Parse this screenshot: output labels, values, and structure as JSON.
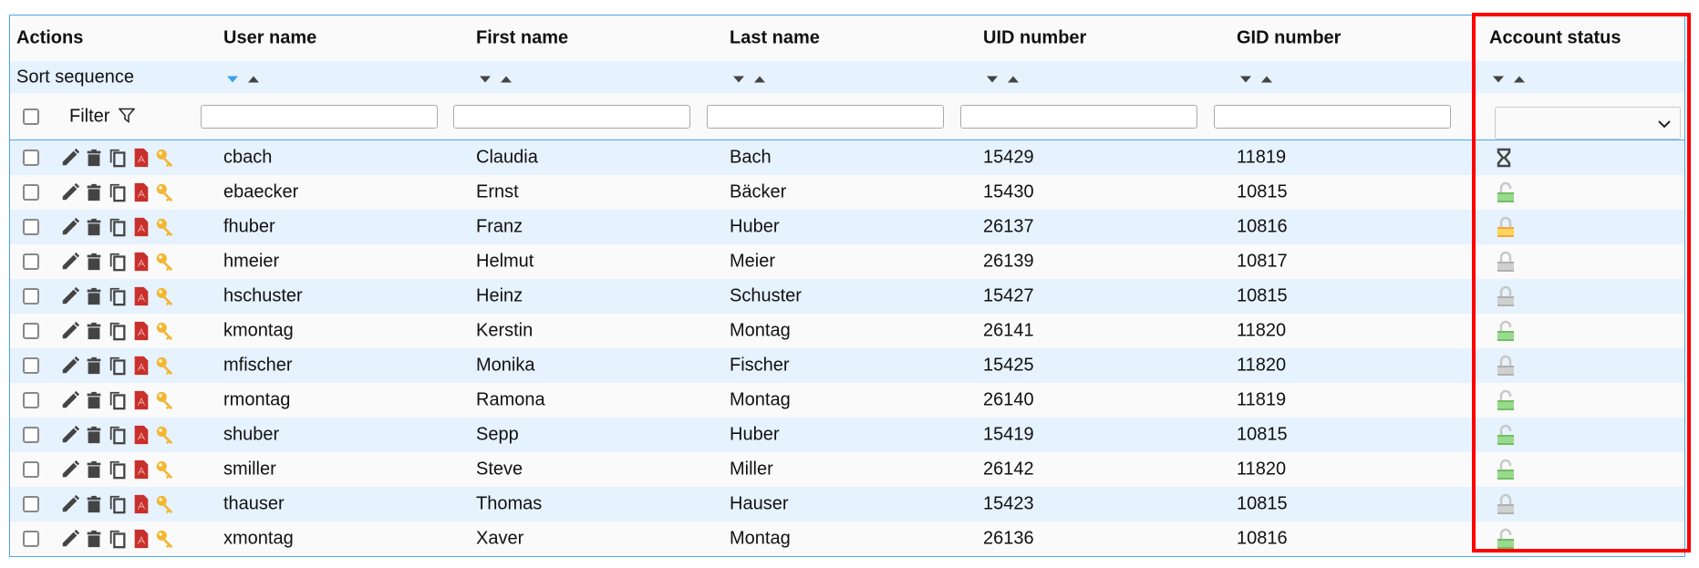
{
  "columns": [
    "Actions",
    "User name",
    "First name",
    "Last name",
    "UID number",
    "GID number",
    "Account status"
  ],
  "sort_label": "Sort sequence",
  "filter_label": "Filter",
  "colors": {
    "accent": "#3fa3e8",
    "row_alt": "#e6f2fe",
    "highlight": "#ff0000",
    "active": "#7ccf6e",
    "warning": "#ffc844",
    "locked": "#c4c4c4"
  },
  "rows": [
    {
      "user": "cbach",
      "first": "Claudia",
      "last": "Bach",
      "uid": "15429",
      "gid": "11819",
      "status": "hourglass"
    },
    {
      "user": "ebaecker",
      "first": "Ernst",
      "last": "Bäcker",
      "uid": "15430",
      "gid": "10815",
      "status": "unlocked-green"
    },
    {
      "user": "fhuber",
      "first": "Franz",
      "last": "Huber",
      "uid": "26137",
      "gid": "10816",
      "status": "locked-yellow"
    },
    {
      "user": "hmeier",
      "first": "Helmut",
      "last": "Meier",
      "uid": "26139",
      "gid": "10817",
      "status": "locked-gray"
    },
    {
      "user": "hschuster",
      "first": "Heinz",
      "last": "Schuster",
      "uid": "15427",
      "gid": "10815",
      "status": "locked-gray"
    },
    {
      "user": "kmontag",
      "first": "Kerstin",
      "last": "Montag",
      "uid": "26141",
      "gid": "11820",
      "status": "unlocked-green"
    },
    {
      "user": "mfischer",
      "first": "Monika",
      "last": "Fischer",
      "uid": "15425",
      "gid": "11820",
      "status": "locked-gray"
    },
    {
      "user": "rmontag",
      "first": "Ramona",
      "last": "Montag",
      "uid": "26140",
      "gid": "11819",
      "status": "unlocked-green"
    },
    {
      "user": "shuber",
      "first": "Sepp",
      "last": "Huber",
      "uid": "15419",
      "gid": "10815",
      "status": "unlocked-green"
    },
    {
      "user": "smiller",
      "first": "Steve",
      "last": "Miller",
      "uid": "26142",
      "gid": "11820",
      "status": "unlocked-green"
    },
    {
      "user": "thauser",
      "first": "Thomas",
      "last": "Hauser",
      "uid": "15423",
      "gid": "10815",
      "status": "locked-gray"
    },
    {
      "user": "xmontag",
      "first": "Xaver",
      "last": "Montag",
      "uid": "26136",
      "gid": "10816",
      "status": "unlocked-green"
    }
  ]
}
